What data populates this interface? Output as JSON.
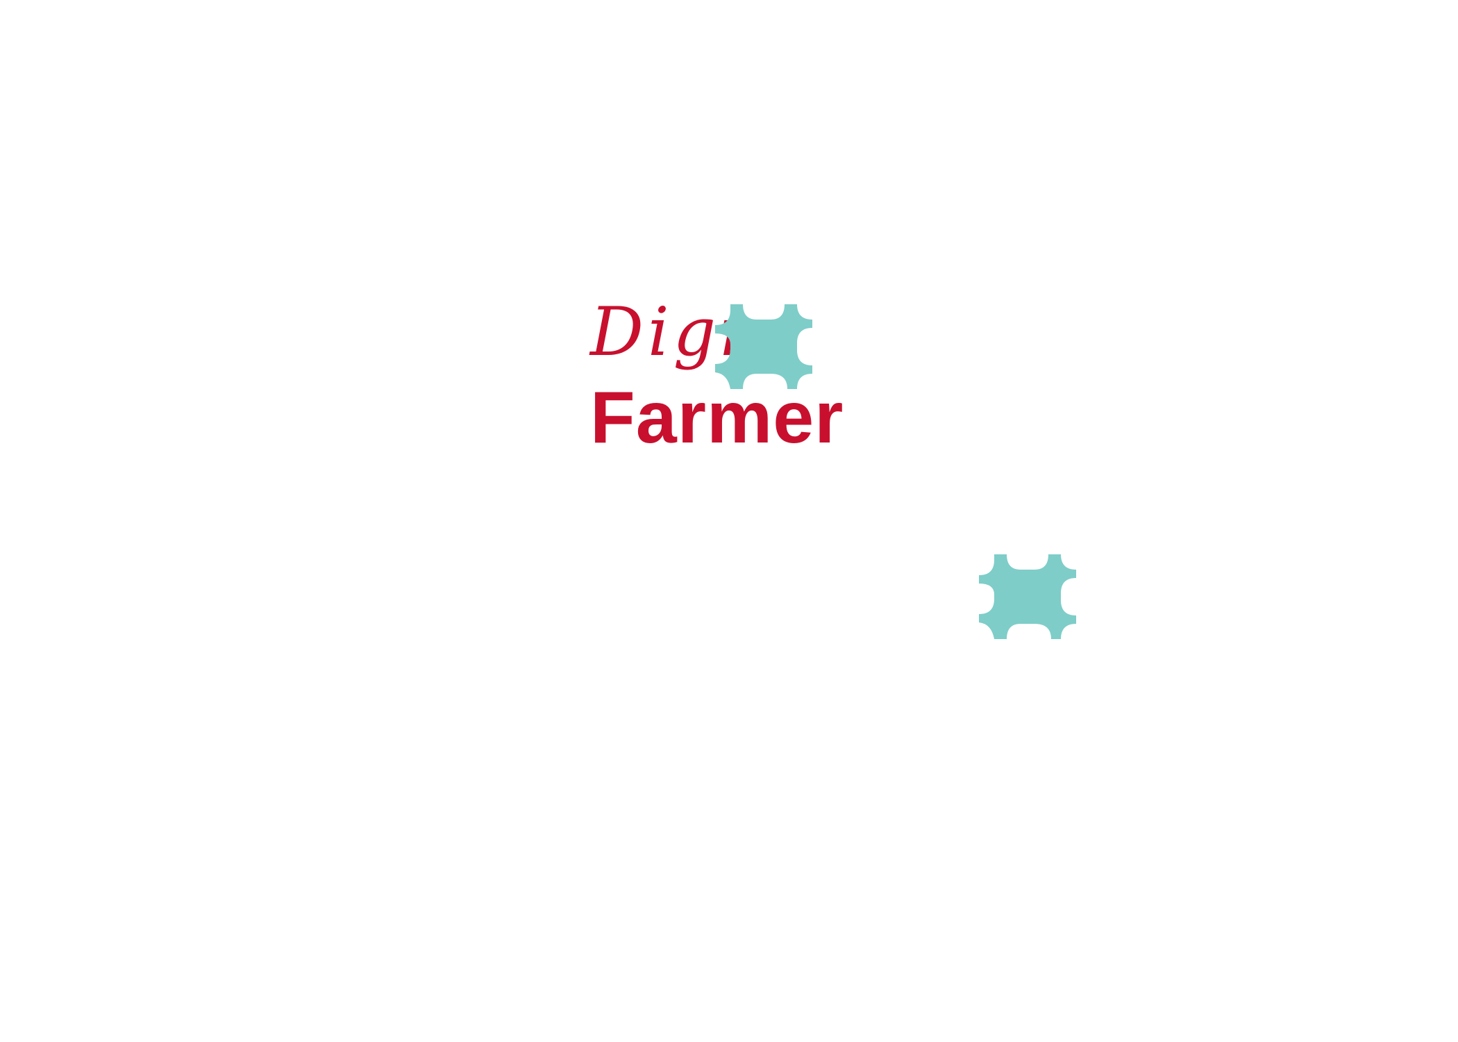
{
  "logo": {
    "script_text": "Digi",
    "word_text": "Farmer"
  },
  "colors": {
    "brand_red": "#c8102e",
    "gear_teal": "#7ecdc8",
    "background": "#ffffff"
  },
  "icons": {
    "primary": "gear-icon",
    "secondary": "gear-icon"
  }
}
